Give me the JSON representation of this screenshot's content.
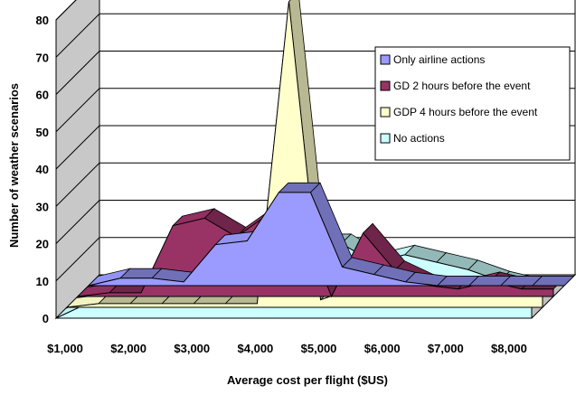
{
  "chart_data": {
    "type": "area",
    "view": "3d-stacked-depth",
    "xlabel": "Average cost per flight ($US)",
    "ylabel": "Number of weather scenarios",
    "x_tick_labels": [
      "$1,000",
      "$2,000",
      "$3,000",
      "$4,000",
      "$5,000",
      "$6,000",
      "$7,000",
      "$8,000"
    ],
    "ylim": [
      0,
      80
    ],
    "y_ticks": [
      0,
      10,
      20,
      30,
      40,
      50,
      60,
      70,
      80
    ],
    "grid": true,
    "legend_position": "right",
    "x": [
      1000,
      1500,
      2000,
      2500,
      3000,
      3500,
      4000,
      4500,
      5000,
      5500,
      6000,
      6500,
      7000,
      7500,
      8000,
      8500
    ],
    "series": [
      {
        "name": "Only airline actions",
        "color": "#9b9bff",
        "values": [
          0,
          2,
          2,
          1,
          11,
          12,
          25,
          25,
          5,
          3,
          1,
          0,
          0,
          0,
          0,
          0
        ]
      },
      {
        "name": "GD 2 hours before the event",
        "color": "#993366",
        "values": [
          0,
          1,
          1,
          19,
          21,
          16,
          22,
          22,
          0,
          17,
          7,
          3,
          2,
          4,
          2,
          2
        ]
      },
      {
        "name": "GDP 4 hours before the event",
        "color": "#ffffcc",
        "values": [
          0,
          1,
          1,
          1,
          1,
          1,
          1,
          82,
          2,
          5,
          5,
          4,
          5,
          4,
          4,
          4
        ]
      },
      {
        "name": "No actions",
        "color": "#ccffff",
        "values": [
          0,
          4,
          3,
          8,
          12,
          12,
          12,
          12,
          20,
          20,
          15,
          17,
          15,
          13,
          10,
          8
        ]
      }
    ]
  }
}
